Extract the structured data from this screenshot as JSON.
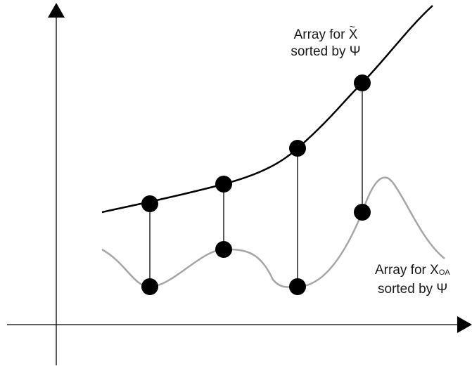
{
  "labels": {
    "top_line1": "Array for ",
    "top_var": "X",
    "top_tilde": "~",
    "top_line2": "sorted by Ψ",
    "bottom_line1": "Array for X",
    "bottom_sub": "OA",
    "bottom_line2": "sorted by Ψ"
  },
  "colors": {
    "axis": "#000000",
    "upper_curve": "#000000",
    "lower_curve": "#a6a6a6",
    "connector": "#000000",
    "point": "#000000"
  }
}
